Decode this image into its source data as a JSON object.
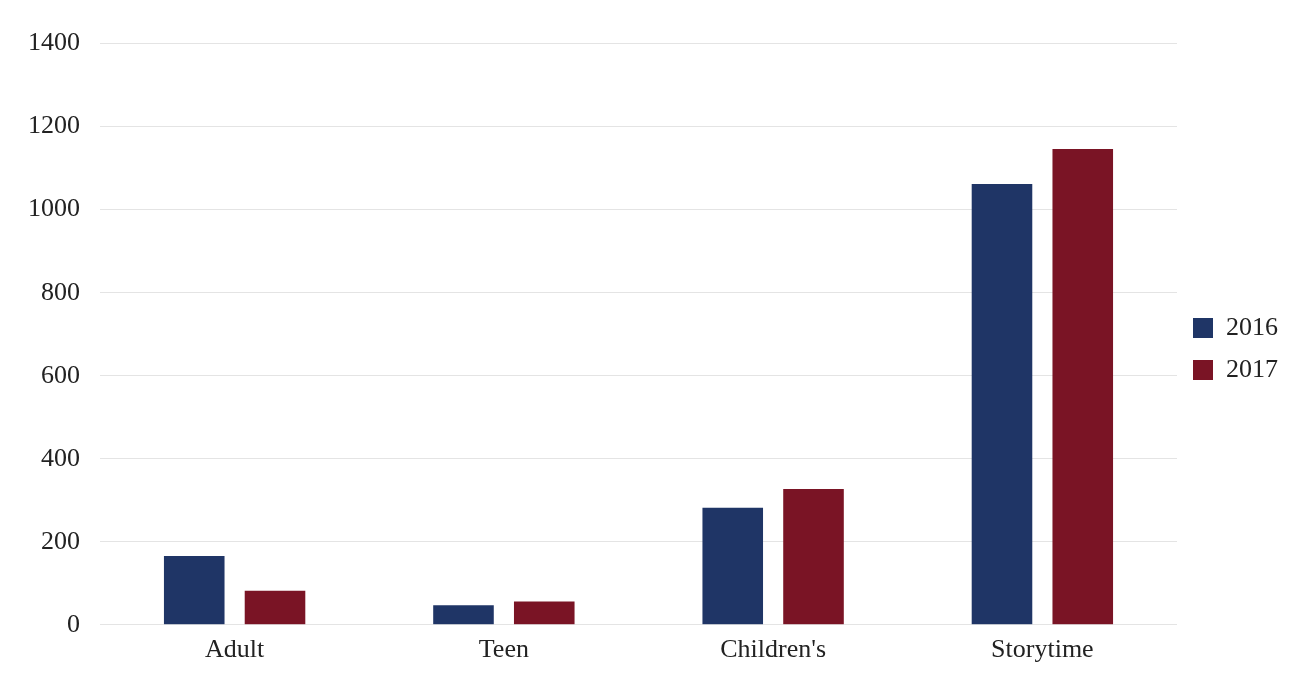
{
  "chart_data": {
    "type": "bar",
    "categories": [
      "Adult",
      "Teen",
      "Children's",
      "Storytime"
    ],
    "series": [
      {
        "name": "2016",
        "color": "#1f3566",
        "values": [
          166,
          47,
          282,
          1062
        ]
      },
      {
        "name": "2017",
        "color": "#7a1425",
        "values": [
          82,
          56,
          327,
          1146
        ]
      }
    ],
    "ylim": [
      0,
      1400
    ],
    "yticks": [
      0,
      200,
      400,
      600,
      800,
      1000,
      1200,
      1400
    ],
    "grid": "y",
    "legend": "right"
  }
}
